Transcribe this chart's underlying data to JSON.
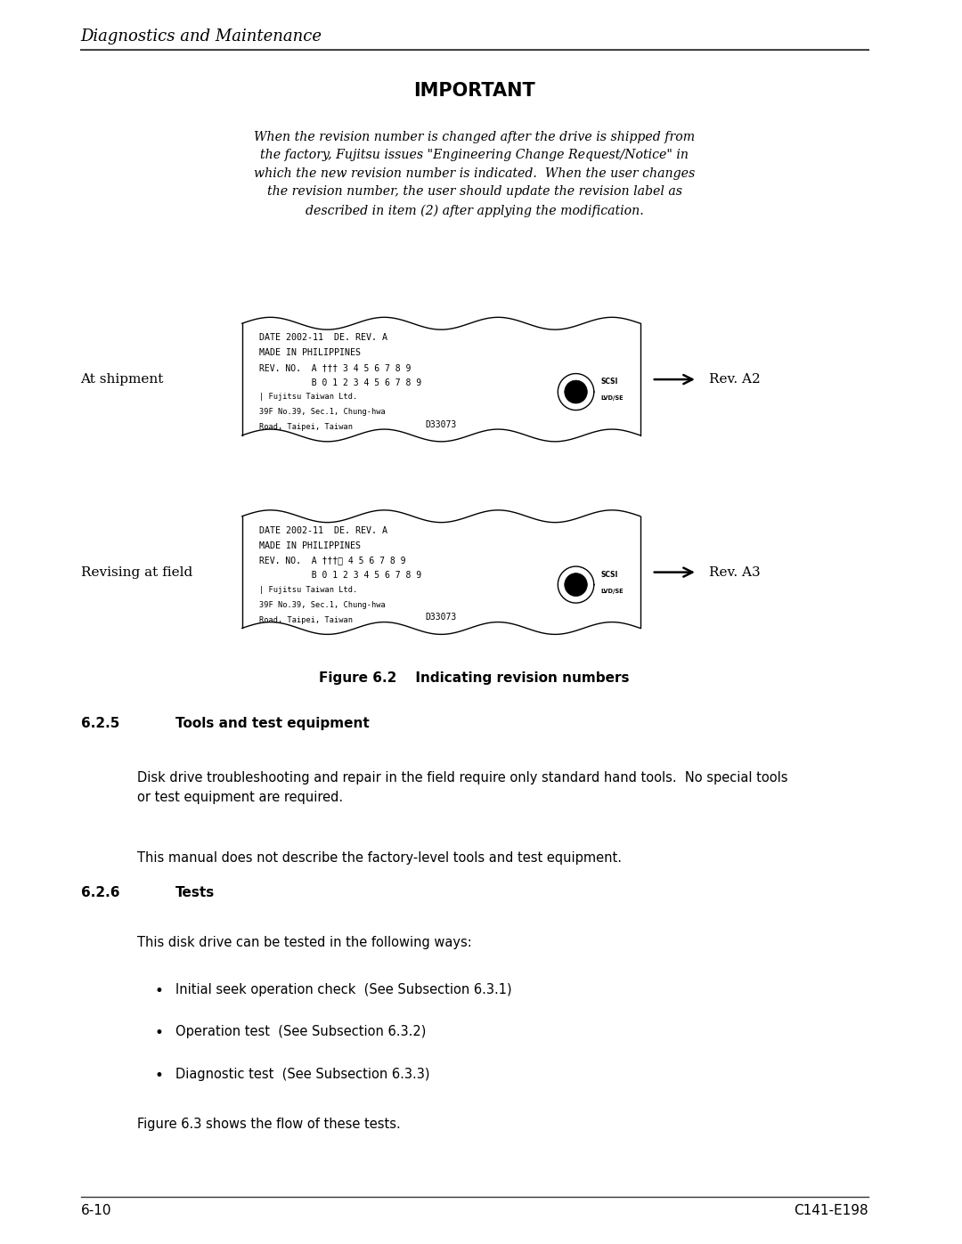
{
  "bg_color": "#ffffff",
  "page_width": 10.8,
  "page_height": 13.97,
  "header_italic": "Diagnostics and Maintenance",
  "important_title": "IMPORTANT",
  "important_body": "When the revision number is changed after the drive is shipped from\nthe factory, Fujitsu issues \"Engineering Change Request/Notice\" in\nwhich the new revision number is indicated.  When the user changes\nthe revision number, the user should update the revision label as\ndescribed in item (2) after applying the modification.",
  "label1_text": "At shipment",
  "label2_text": "Revising at field",
  "rev1_text": "Rev. A2",
  "rev2_text": "Rev. A3",
  "figure_caption": "Figure 6.2    Indicating revision numbers",
  "section_625_num": "6.2.5",
  "section_625_title": "Tools and test equipment",
  "section_625_body1": "Disk drive troubleshooting and repair in the field require only standard hand tools.  No special tools\nor test equipment are required.",
  "section_625_body2": "This manual does not describe the factory-level tools and test equipment.",
  "section_626_num": "6.2.6",
  "section_626_title": "Tests",
  "section_626_body1": "This disk drive can be tested in the following ways:",
  "bullet1": "Initial seek operation check  (See Subsection 6.3.1)",
  "bullet2": "Operation test  (See Subsection 6.3.2)",
  "bullet3": "Diagnostic test  (See Subsection 6.3.3)",
  "section_626_body2": "Figure 6.3 shows the flow of these tests.",
  "footer_left": "6-10",
  "footer_right": "C141-E198"
}
